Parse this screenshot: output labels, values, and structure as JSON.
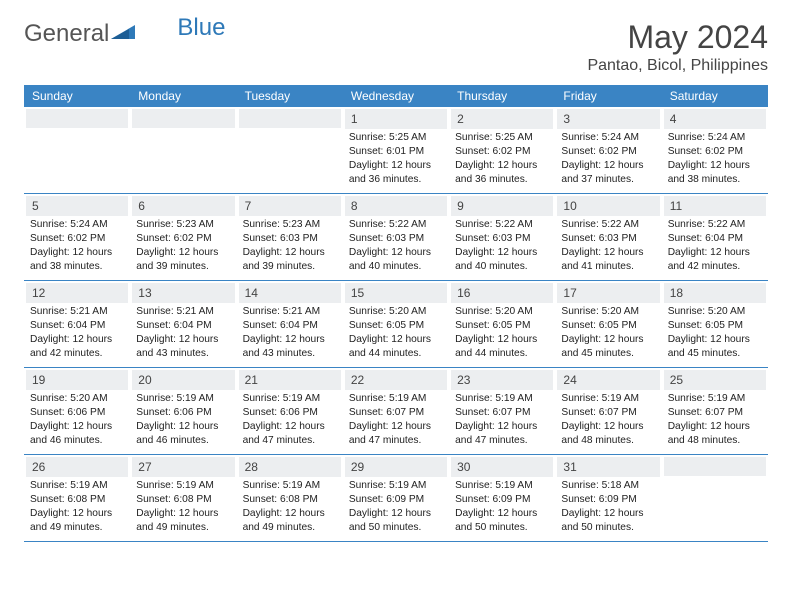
{
  "logo": {
    "general": "General",
    "blue": "Blue"
  },
  "title": "May 2024",
  "location": "Pantao, Bicol, Philippines",
  "colors": {
    "header_bg": "#3a84c4",
    "header_text": "#ffffff",
    "daynum_bg": "#eceef0",
    "border": "#3a84c4",
    "page_bg": "#ffffff",
    "body_text": "#222222",
    "title_text": "#444444"
  },
  "weekdays": [
    "Sunday",
    "Monday",
    "Tuesday",
    "Wednesday",
    "Thursday",
    "Friday",
    "Saturday"
  ],
  "weeks": [
    [
      null,
      null,
      null,
      {
        "n": "1",
        "sunrise": "5:25 AM",
        "sunset": "6:01 PM",
        "daylight": "12 hours and 36 minutes."
      },
      {
        "n": "2",
        "sunrise": "5:25 AM",
        "sunset": "6:02 PM",
        "daylight": "12 hours and 36 minutes."
      },
      {
        "n": "3",
        "sunrise": "5:24 AM",
        "sunset": "6:02 PM",
        "daylight": "12 hours and 37 minutes."
      },
      {
        "n": "4",
        "sunrise": "5:24 AM",
        "sunset": "6:02 PM",
        "daylight": "12 hours and 38 minutes."
      }
    ],
    [
      {
        "n": "5",
        "sunrise": "5:24 AM",
        "sunset": "6:02 PM",
        "daylight": "12 hours and 38 minutes."
      },
      {
        "n": "6",
        "sunrise": "5:23 AM",
        "sunset": "6:02 PM",
        "daylight": "12 hours and 39 minutes."
      },
      {
        "n": "7",
        "sunrise": "5:23 AM",
        "sunset": "6:03 PM",
        "daylight": "12 hours and 39 minutes."
      },
      {
        "n": "8",
        "sunrise": "5:22 AM",
        "sunset": "6:03 PM",
        "daylight": "12 hours and 40 minutes."
      },
      {
        "n": "9",
        "sunrise": "5:22 AM",
        "sunset": "6:03 PM",
        "daylight": "12 hours and 40 minutes."
      },
      {
        "n": "10",
        "sunrise": "5:22 AM",
        "sunset": "6:03 PM",
        "daylight": "12 hours and 41 minutes."
      },
      {
        "n": "11",
        "sunrise": "5:22 AM",
        "sunset": "6:04 PM",
        "daylight": "12 hours and 42 minutes."
      }
    ],
    [
      {
        "n": "12",
        "sunrise": "5:21 AM",
        "sunset": "6:04 PM",
        "daylight": "12 hours and 42 minutes."
      },
      {
        "n": "13",
        "sunrise": "5:21 AM",
        "sunset": "6:04 PM",
        "daylight": "12 hours and 43 minutes."
      },
      {
        "n": "14",
        "sunrise": "5:21 AM",
        "sunset": "6:04 PM",
        "daylight": "12 hours and 43 minutes."
      },
      {
        "n": "15",
        "sunrise": "5:20 AM",
        "sunset": "6:05 PM",
        "daylight": "12 hours and 44 minutes."
      },
      {
        "n": "16",
        "sunrise": "5:20 AM",
        "sunset": "6:05 PM",
        "daylight": "12 hours and 44 minutes."
      },
      {
        "n": "17",
        "sunrise": "5:20 AM",
        "sunset": "6:05 PM",
        "daylight": "12 hours and 45 minutes."
      },
      {
        "n": "18",
        "sunrise": "5:20 AM",
        "sunset": "6:05 PM",
        "daylight": "12 hours and 45 minutes."
      }
    ],
    [
      {
        "n": "19",
        "sunrise": "5:20 AM",
        "sunset": "6:06 PM",
        "daylight": "12 hours and 46 minutes."
      },
      {
        "n": "20",
        "sunrise": "5:19 AM",
        "sunset": "6:06 PM",
        "daylight": "12 hours and 46 minutes."
      },
      {
        "n": "21",
        "sunrise": "5:19 AM",
        "sunset": "6:06 PM",
        "daylight": "12 hours and 47 minutes."
      },
      {
        "n": "22",
        "sunrise": "5:19 AM",
        "sunset": "6:07 PM",
        "daylight": "12 hours and 47 minutes."
      },
      {
        "n": "23",
        "sunrise": "5:19 AM",
        "sunset": "6:07 PM",
        "daylight": "12 hours and 47 minutes."
      },
      {
        "n": "24",
        "sunrise": "5:19 AM",
        "sunset": "6:07 PM",
        "daylight": "12 hours and 48 minutes."
      },
      {
        "n": "25",
        "sunrise": "5:19 AM",
        "sunset": "6:07 PM",
        "daylight": "12 hours and 48 minutes."
      }
    ],
    [
      {
        "n": "26",
        "sunrise": "5:19 AM",
        "sunset": "6:08 PM",
        "daylight": "12 hours and 49 minutes."
      },
      {
        "n": "27",
        "sunrise": "5:19 AM",
        "sunset": "6:08 PM",
        "daylight": "12 hours and 49 minutes."
      },
      {
        "n": "28",
        "sunrise": "5:19 AM",
        "sunset": "6:08 PM",
        "daylight": "12 hours and 49 minutes."
      },
      {
        "n": "29",
        "sunrise": "5:19 AM",
        "sunset": "6:09 PM",
        "daylight": "12 hours and 50 minutes."
      },
      {
        "n": "30",
        "sunrise": "5:19 AM",
        "sunset": "6:09 PM",
        "daylight": "12 hours and 50 minutes."
      },
      {
        "n": "31",
        "sunrise": "5:18 AM",
        "sunset": "6:09 PM",
        "daylight": "12 hours and 50 minutes."
      },
      null
    ]
  ]
}
